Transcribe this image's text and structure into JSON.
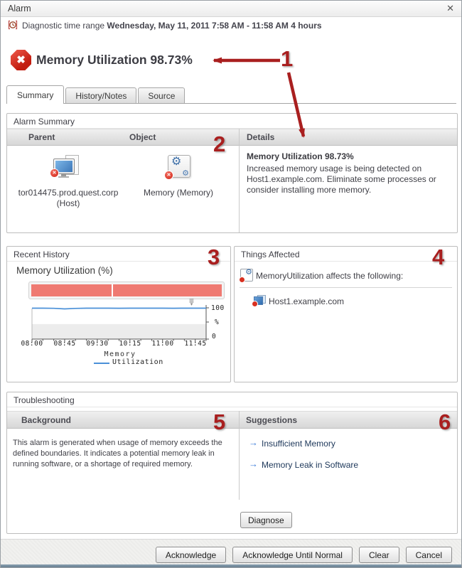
{
  "window": {
    "title": "Alarm"
  },
  "icons": {
    "close": "✕",
    "error_x": "✖",
    "gear": "⚙",
    "badge_x": "✕",
    "suggestion_arrow": "→",
    "chart_options": "≡",
    "chart_options_caret": "▾"
  },
  "time_range": {
    "label": "Diagnostic time range",
    "value": "Wednesday, May 11, 2011  7:58 AM - 11:58 AM  4 hours"
  },
  "header": {
    "title": "Memory Utilization 98.73%"
  },
  "tabs": [
    {
      "label": "Summary",
      "active": true
    },
    {
      "label": "History/Notes",
      "active": false
    },
    {
      "label": "Source",
      "active": false
    }
  ],
  "annotations": {
    "labels": [
      "1",
      "2",
      "3",
      "4",
      "5",
      "6"
    ],
    "color": "#a91f1f"
  },
  "alarm_summary": {
    "title": "Alarm Summary",
    "columns": [
      "Parent",
      "Object",
      "Details"
    ],
    "parent": {
      "name": "tor014475.prod.quest.corp",
      "type": "(Host)"
    },
    "object": {
      "name": "Memory (Memory)"
    },
    "details": {
      "title": "Memory Utilization 98.73%",
      "body": "Increased memory usage is being detected on Host1.example.com. Eliminate some processes or consider installing more memory."
    }
  },
  "recent_history": {
    "title": "Recent History",
    "severity_bar": {
      "color": "#ef7a72",
      "divider_pct": 42
    }
  },
  "chart_data": {
    "type": "line",
    "title": "Memory Utilization (%)",
    "x_labels": [
      "08:00",
      "08:45",
      "09:30",
      "10:15",
      "11:00",
      "11:45"
    ],
    "x_axis_label": "Memory",
    "ylim": [
      0,
      100
    ],
    "y_max_label": "100",
    "y_min_label": "0",
    "y_unit": "%",
    "normal_band_max": 48,
    "grid": false,
    "legend_position": "bottom",
    "series": [
      {
        "name": "Utilization",
        "color": "#4a90d8",
        "values": [
          98.8,
          98.8,
          98.4,
          96.7,
          98.1,
          98.8,
          98.8,
          98.8,
          98.7,
          98.8,
          98.8,
          98.8,
          98.8,
          98.7,
          98.8,
          98.8,
          98.8
        ]
      }
    ]
  },
  "things_affected": {
    "title": "Things Affected",
    "header": "MemoryUtilization affects the following:",
    "items": [
      "Host1.example.com"
    ]
  },
  "troubleshooting": {
    "title": "Troubleshooting",
    "background_header": "Background",
    "background_text": "This alarm is generated when usage of memory exceeds the defined boundaries. It indicates a potential memory leak in running software, or a shortage of required memory.",
    "suggestions_header": "Suggestions",
    "suggestions": [
      "Insufficient Memory",
      "Memory Leak in Software"
    ],
    "diagnose_label": "Diagnose"
  },
  "footer": {
    "buttons": [
      "Acknowledge",
      "Acknowledge Until Normal",
      "Clear",
      "Cancel"
    ]
  }
}
